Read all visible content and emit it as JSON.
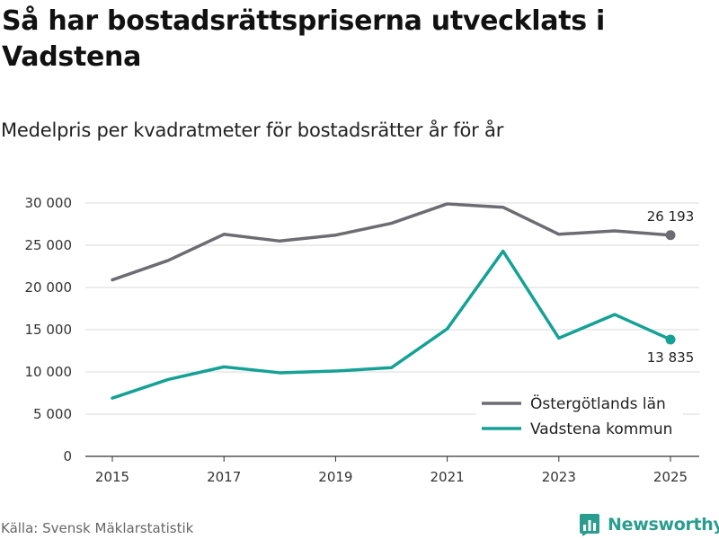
{
  "header": {
    "title": "Så har bostadsrättspriserna utvecklats i Vadstena",
    "subtitle": "Medelpris per kvadratmeter för bostadsrätter år för år"
  },
  "footer": {
    "source": "Källa: Svensk Mäklarstatistik",
    "brand": "Newsworthy",
    "brand_color": "#2a9d8f"
  },
  "chart_data": {
    "type": "line",
    "title": "Så har bostadsrättspriserna utvecklats i Vadstena",
    "subtitle": "Medelpris per kvadratmeter för bostadsrätter år för år",
    "xlabel": "",
    "ylabel": "",
    "x": [
      2015,
      2016,
      2017,
      2018,
      2019,
      2020,
      2021,
      2022,
      2023,
      2024,
      2025
    ],
    "xticks": [
      "2015",
      "2017",
      "2019",
      "2021",
      "2023",
      "2025"
    ],
    "ylim": [
      0,
      30000
    ],
    "yticks": [
      0,
      5000,
      10000,
      15000,
      20000,
      25000,
      30000
    ],
    "ytick_labels": [
      "0",
      "5 000",
      "10 000",
      "15 000",
      "20 000",
      "25 000",
      "30 000"
    ],
    "grid": "horizontal",
    "legend_position": "bottom-right",
    "series": [
      {
        "name": "Östergötlands län",
        "color": "#6d6c72",
        "values": [
          20900,
          23200,
          26300,
          25500,
          26200,
          27600,
          29900,
          29500,
          26300,
          26700,
          26193
        ],
        "end_label": "26 193",
        "end_label_position": "above"
      },
      {
        "name": "Vadstena kommun",
        "color": "#16a196",
        "values": [
          6900,
          9100,
          10600,
          9900,
          10100,
          10500,
          15100,
          24300,
          14000,
          16800,
          13835
        ],
        "end_label": "13 835",
        "end_label_position": "below"
      }
    ]
  }
}
